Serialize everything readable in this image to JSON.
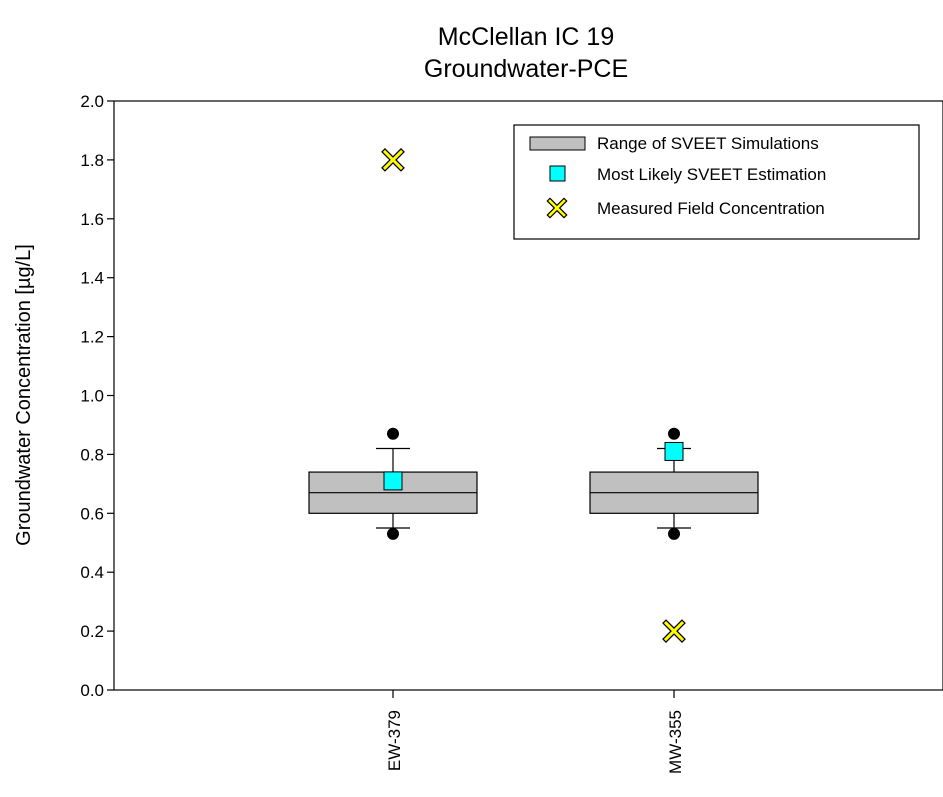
{
  "chart_data": {
    "type": "box",
    "title": "McClellan IC 19",
    "subtitle": "Groundwater-PCE",
    "ylabel": "Groundwater Concentration [µg/L]",
    "xlabel": "",
    "ylim": [
      0,
      2.0
    ],
    "yticks": [
      0.0,
      0.2,
      0.4,
      0.6,
      0.8,
      1.0,
      1.2,
      1.4,
      1.6,
      1.8,
      2.0
    ],
    "ytick_labels": [
      "0.0",
      "0.2",
      "0.4",
      "0.6",
      "0.8",
      "1.0",
      "1.2",
      "1.4",
      "1.6",
      "1.8",
      "2.0"
    ],
    "grid": false,
    "legend_position": "top-right",
    "legend": [
      {
        "label": "Range of SVEET Simulations",
        "marker": "box",
        "color": "#c0c0c0"
      },
      {
        "label": "Most Likely SVEET Estimation",
        "marker": "square",
        "color": "#00ffff"
      },
      {
        "label": "Measured Field Concentration",
        "marker": "x",
        "color": "#ffff00"
      }
    ],
    "categories": [
      "EW-379",
      "MW-355"
    ],
    "boxes": [
      {
        "category": "EW-379",
        "q1": 0.6,
        "median": 0.67,
        "q3": 0.74,
        "whisker_low": 0.55,
        "whisker_high": 0.82,
        "outliers": [
          0.53,
          0.87
        ],
        "most_likely": 0.71,
        "measured": 1.8
      },
      {
        "category": "MW-355",
        "q1": 0.6,
        "median": 0.67,
        "q3": 0.74,
        "whisker_low": 0.55,
        "whisker_high": 0.82,
        "outliers": [
          0.53,
          0.87
        ],
        "most_likely": 0.81,
        "measured": 0.2
      }
    ],
    "colors": {
      "box_fill": "#c0c0c0",
      "estimate": "#00ffff",
      "measured": "#ffff00",
      "outlier": "#000000"
    }
  }
}
